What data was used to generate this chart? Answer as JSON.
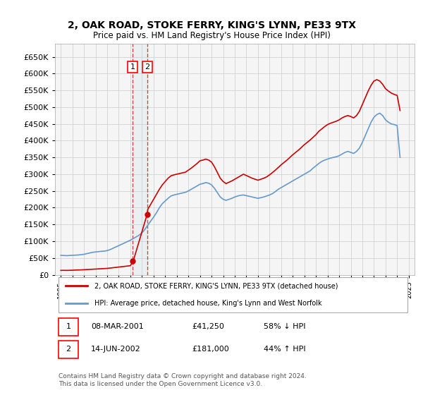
{
  "title": "2, OAK ROAD, STOKE FERRY, KING'S LYNN, PE33 9TX",
  "subtitle": "Price paid vs. HM Land Registry's House Price Index (HPI)",
  "ylabel_ticks": [
    0,
    50000,
    100000,
    150000,
    200000,
    250000,
    300000,
    350000,
    400000,
    450000,
    500000,
    550000,
    600000,
    650000
  ],
  "ylim": [
    0,
    690000
  ],
  "xlim_start": 1994.5,
  "xlim_end": 2025.5,
  "grid_color": "#cccccc",
  "background_color": "#ffffff",
  "plot_bg_color": "#f5f5f5",
  "red_line_color": "#cc0000",
  "blue_line_color": "#6699cc",
  "sale1_date": 2001.18,
  "sale1_price": 41250,
  "sale2_date": 2002.45,
  "sale2_price": 181000,
  "legend_red": "2, OAK ROAD, STOKE FERRY, KING'S LYNN, PE33 9TX (detached house)",
  "legend_blue": "HPI: Average price, detached house, King's Lynn and West Norfolk",
  "table": [
    {
      "num": 1,
      "date": "08-MAR-2001",
      "price": "£41,250",
      "pct": "58% ↓ HPI"
    },
    {
      "num": 2,
      "date": "14-JUN-2002",
      "price": "£181,000",
      "pct": "44% ↑ HPI"
    }
  ],
  "footnote": "Contains HM Land Registry data © Crown copyright and database right 2024.\nThis data is licensed under the Open Government Licence v3.0.",
  "hpi_data": {
    "years": [
      1995.0,
      1995.25,
      1995.5,
      1995.75,
      1996.0,
      1996.25,
      1996.5,
      1996.75,
      1997.0,
      1997.25,
      1997.5,
      1997.75,
      1998.0,
      1998.25,
      1998.5,
      1998.75,
      1999.0,
      1999.25,
      1999.5,
      1999.75,
      2000.0,
      2000.25,
      2000.5,
      2000.75,
      2001.0,
      2001.25,
      2001.5,
      2001.75,
      2002.0,
      2002.25,
      2002.5,
      2002.75,
      2003.0,
      2003.25,
      2003.5,
      2003.75,
      2004.0,
      2004.25,
      2004.5,
      2004.75,
      2005.0,
      2005.25,
      2005.5,
      2005.75,
      2006.0,
      2006.25,
      2006.5,
      2006.75,
      2007.0,
      2007.25,
      2007.5,
      2007.75,
      2008.0,
      2008.25,
      2008.5,
      2008.75,
      2009.0,
      2009.25,
      2009.5,
      2009.75,
      2010.0,
      2010.25,
      2010.5,
      2010.75,
      2011.0,
      2011.25,
      2011.5,
      2011.75,
      2012.0,
      2012.25,
      2012.5,
      2012.75,
      2013.0,
      2013.25,
      2013.5,
      2013.75,
      2014.0,
      2014.25,
      2014.5,
      2014.75,
      2015.0,
      2015.25,
      2015.5,
      2015.75,
      2016.0,
      2016.25,
      2016.5,
      2016.75,
      2017.0,
      2017.25,
      2017.5,
      2017.75,
      2018.0,
      2018.25,
      2018.5,
      2018.75,
      2019.0,
      2019.25,
      2019.5,
      2019.75,
      2020.0,
      2020.25,
      2020.5,
      2020.75,
      2021.0,
      2021.25,
      2021.5,
      2021.75,
      2022.0,
      2022.25,
      2022.5,
      2022.75,
      2023.0,
      2023.25,
      2023.5,
      2023.75,
      2024.0,
      2024.25
    ],
    "values": [
      58000,
      57500,
      57000,
      57500,
      58000,
      58500,
      59000,
      60000,
      61000,
      63000,
      65000,
      67000,
      68000,
      69000,
      70000,
      70500,
      72000,
      75000,
      79000,
      83000,
      87000,
      91000,
      95000,
      99000,
      103000,
      108000,
      113000,
      118000,
      125000,
      135000,
      148000,
      160000,
      172000,
      185000,
      200000,
      212000,
      220000,
      228000,
      235000,
      238000,
      240000,
      242000,
      244000,
      246000,
      250000,
      255000,
      260000,
      265000,
      270000,
      272000,
      275000,
      273000,
      268000,
      258000,
      245000,
      232000,
      225000,
      222000,
      225000,
      228000,
      232000,
      235000,
      237000,
      238000,
      236000,
      234000,
      232000,
      230000,
      228000,
      230000,
      232000,
      235000,
      238000,
      242000,
      248000,
      255000,
      260000,
      265000,
      270000,
      275000,
      280000,
      285000,
      290000,
      295000,
      300000,
      305000,
      310000,
      318000,
      325000,
      332000,
      338000,
      342000,
      345000,
      348000,
      350000,
      352000,
      355000,
      360000,
      365000,
      368000,
      365000,
      362000,
      368000,
      378000,
      395000,
      415000,
      435000,
      455000,
      470000,
      478000,
      482000,
      475000,
      462000,
      455000,
      450000,
      448000,
      445000,
      350000
    ]
  },
  "red_data": {
    "years": [
      1995.0,
      1995.25,
      1995.5,
      1995.75,
      1996.0,
      1996.25,
      1996.5,
      1996.75,
      1997.0,
      1997.25,
      1997.5,
      1997.75,
      1998.0,
      1998.25,
      1998.5,
      1998.75,
      1999.0,
      1999.25,
      1999.5,
      1999.75,
      2000.0,
      2000.25,
      2000.5,
      2000.75,
      2001.0,
      2001.25,
      2002.45,
      2002.5,
      2002.75,
      2003.0,
      2003.25,
      2003.5,
      2003.75,
      2004.0,
      2004.25,
      2004.5,
      2004.75,
      2005.0,
      2005.25,
      2005.5,
      2005.75,
      2006.0,
      2006.25,
      2006.5,
      2006.75,
      2007.0,
      2007.25,
      2007.5,
      2007.75,
      2008.0,
      2008.25,
      2008.5,
      2008.75,
      2009.0,
      2009.25,
      2009.5,
      2009.75,
      2010.0,
      2010.25,
      2010.5,
      2010.75,
      2011.0,
      2011.25,
      2011.5,
      2011.75,
      2012.0,
      2012.25,
      2012.5,
      2012.75,
      2013.0,
      2013.25,
      2013.5,
      2013.75,
      2014.0,
      2014.25,
      2014.5,
      2014.75,
      2015.0,
      2015.25,
      2015.5,
      2015.75,
      2016.0,
      2016.25,
      2016.5,
      2016.75,
      2017.0,
      2017.25,
      2017.5,
      2017.75,
      2018.0,
      2018.25,
      2018.5,
      2018.75,
      2019.0,
      2019.25,
      2019.5,
      2019.75,
      2020.0,
      2020.25,
      2020.5,
      2020.75,
      2021.0,
      2021.25,
      2021.5,
      2021.75,
      2022.0,
      2022.25,
      2022.5,
      2022.75,
      2023.0,
      2023.25,
      2023.5,
      2023.75,
      2024.0,
      2024.25
    ],
    "values": [
      13000,
      13200,
      13000,
      13200,
      13500,
      14000,
      14200,
      14500,
      15000,
      15500,
      16000,
      16500,
      17000,
      17500,
      18000,
      18500,
      19000,
      20000,
      21000,
      22000,
      23000,
      24000,
      25000,
      26000,
      27000,
      41250,
      181000,
      195000,
      210000,
      225000,
      240000,
      255000,
      268000,
      278000,
      288000,
      295000,
      298000,
      300000,
      302000,
      304000,
      306000,
      312000,
      318000,
      325000,
      332000,
      340000,
      342000,
      345000,
      342000,
      336000,
      322000,
      305000,
      288000,
      278000,
      272000,
      276000,
      280000,
      285000,
      290000,
      295000,
      300000,
      296000,
      292000,
      288000,
      285000,
      282000,
      285000,
      288000,
      292000,
      298000,
      305000,
      312000,
      320000,
      328000,
      335000,
      342000,
      350000,
      358000,
      365000,
      372000,
      380000,
      388000,
      395000,
      402000,
      410000,
      418000,
      428000,
      435000,
      442000,
      448000,
      452000,
      455000,
      458000,
      462000,
      468000,
      472000,
      475000,
      472000,
      468000,
      475000,
      488000,
      508000,
      528000,
      548000,
      565000,
      578000,
      582000,
      578000,
      568000,
      555000,
      548000,
      542000,
      538000,
      535000,
      490000
    ]
  }
}
